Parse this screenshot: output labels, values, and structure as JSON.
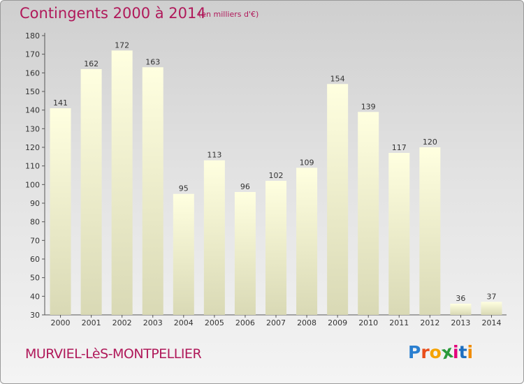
{
  "header": {
    "title": "Contingents 2000 à 2014",
    "subtitle": "(en milliers d'€)"
  },
  "footer": {
    "commune": "MURVIEL-LèS-MONTPELLIER",
    "logo": "Proxiti"
  },
  "colors": {
    "title": "#b0195a",
    "bar_top": "#ffffe0",
    "bar_bottom": "#d9d9b5",
    "logo_letters": [
      "#2a7fd0",
      "#e94e1b",
      "#f5a300",
      "#2a9a3a",
      "#e3007a",
      "#1d6fc0",
      "#f08c00"
    ]
  },
  "chart_data": {
    "type": "bar",
    "categories": [
      "2000",
      "2001",
      "2002",
      "2003",
      "2004",
      "2005",
      "2006",
      "2007",
      "2008",
      "2009",
      "2010",
      "2011",
      "2012",
      "2013",
      "2014"
    ],
    "values": [
      141,
      162,
      172,
      163,
      95,
      113,
      96,
      102,
      109,
      154,
      139,
      117,
      120,
      36,
      37
    ],
    "title": "Contingents 2000 à 2014",
    "subtitle": "(en milliers d'€)",
    "xlabel": "",
    "ylabel": "",
    "ylim": [
      30,
      180
    ],
    "yticks": [
      30,
      40,
      50,
      60,
      70,
      80,
      90,
      100,
      110,
      120,
      130,
      140,
      150,
      160,
      170,
      180
    ],
    "grid": false,
    "legend": "none"
  }
}
